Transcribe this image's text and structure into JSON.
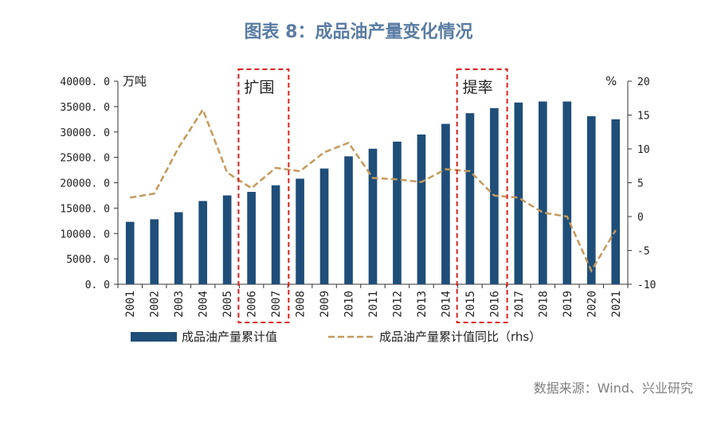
{
  "title": "图表 8：成品油产量变化情况",
  "source": "数据来源：Wind、兴业研究",
  "colors": {
    "bar": "#1f4e79",
    "line": "#c49a5c",
    "box": "#e02020",
    "title": "#5a7ca3"
  },
  "chart_data": {
    "type": "bar",
    "categories": [
      "2001",
      "2002",
      "2003",
      "2004",
      "2005",
      "2006",
      "2007",
      "2008",
      "2009",
      "2010",
      "2011",
      "2012",
      "2013",
      "2014",
      "2015",
      "2016",
      "2017",
      "2018",
      "2019",
      "2020",
      "2021"
    ],
    "series": [
      {
        "name": "成品油产量累计值",
        "type": "bar",
        "axis": "left",
        "values": [
          12300,
          12800,
          14200,
          16400,
          17500,
          18200,
          19500,
          20800,
          22800,
          25200,
          26700,
          28100,
          29500,
          31600,
          33700,
          34700,
          35800,
          36000,
          36000,
          33100,
          32500
        ]
      },
      {
        "name": "成品油产量累计值同比（rhs）",
        "type": "line",
        "axis": "right",
        "style": "dashed",
        "values": [
          2.8,
          3.4,
          10.2,
          15.8,
          6.5,
          4.2,
          7.2,
          6.7,
          9.5,
          10.9,
          5.7,
          5.5,
          5.1,
          7.0,
          6.7,
          3.1,
          2.8,
          0.6,
          0.0,
          -8.0,
          -2.0
        ]
      }
    ],
    "y_left": {
      "min": 0,
      "max": 40000,
      "step": 5000,
      "ticks": [
        "0. 0",
        "5000. 0",
        "10000. 0",
        "15000. 0",
        "20000. 0",
        "25000. 0",
        "30000. 0",
        "35000. 0",
        "40000. 0"
      ],
      "unit": "万吨"
    },
    "y_right": {
      "min": -10,
      "max": 20,
      "step": 5,
      "ticks": [
        "-10",
        "-5",
        "0",
        "5",
        "10",
        "15",
        "20"
      ],
      "unit": "%"
    },
    "annotations": [
      {
        "text": "扩围",
        "from": "2006",
        "to": "2007"
      },
      {
        "text": "提率",
        "from": "2015",
        "to": "2016"
      }
    ],
    "legend": {
      "position": "bottom-left",
      "entries": [
        "成品油产量累计值",
        "成品油产量累计值同比（rhs）"
      ]
    },
    "grid": false
  }
}
